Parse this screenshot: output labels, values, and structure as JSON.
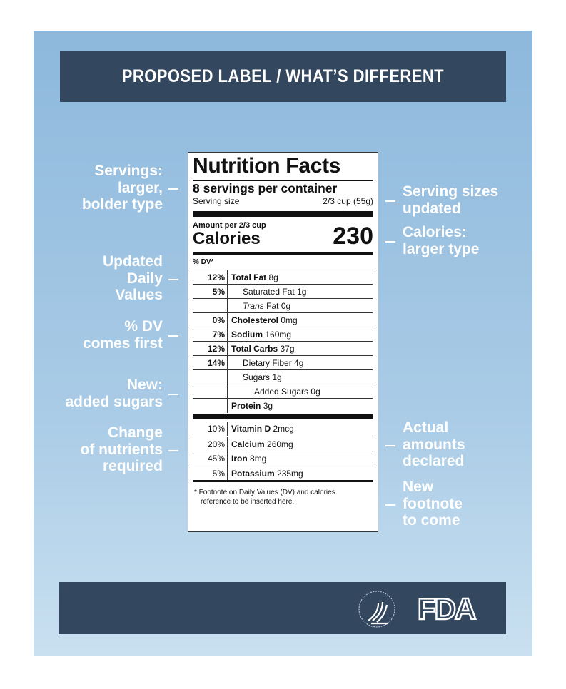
{
  "header": {
    "title": "PROPOSED LABEL / WHAT’S DIFFERENT"
  },
  "left_annotations": [
    {
      "lines": [
        "Servings:",
        "larger,",
        "bolder type"
      ]
    },
    {
      "lines": [
        "Updated",
        "Daily",
        "Values"
      ]
    },
    {
      "lines": [
        "% DV",
        "comes first"
      ]
    },
    {
      "lines": [
        "New:",
        "added sugars"
      ]
    },
    {
      "lines": [
        "Change",
        "of nutrients",
        "required"
      ]
    }
  ],
  "right_annotations": [
    {
      "lines": [
        "Serving sizes",
        "updated"
      ]
    },
    {
      "lines": [
        "Calories:",
        "larger type"
      ]
    },
    {
      "lines": [
        "Actual",
        "amounts",
        "declared"
      ]
    },
    {
      "lines": [
        "New",
        "footnote",
        "to come"
      ]
    }
  ],
  "label": {
    "title": "Nutrition Facts",
    "servings": "8 servings per container",
    "serving_size_label": "Serving size",
    "serving_size_value": "2/3 cup (55g)",
    "amount_per": "Amount per 2/3 cup",
    "calories_label": "Calories",
    "calories_value": "230",
    "dv_header": "% DV*",
    "nutrients": [
      {
        "dv": "12%",
        "name": "Total Fat",
        "amount": "8g",
        "indent": 0,
        "bold": true
      },
      {
        "dv": "5%",
        "name": "Saturated Fat",
        "amount": "1g",
        "indent": 1,
        "bold": false
      },
      {
        "dv": "",
        "name": "Trans",
        "name_suffix": " Fat",
        "amount": "0g",
        "indent": 1,
        "bold": false,
        "italic": true
      },
      {
        "dv": "0%",
        "name": "Cholesterol",
        "amount": "0mg",
        "indent": 0,
        "bold": true
      },
      {
        "dv": "7%",
        "name": "Sodium",
        "amount": "160mg",
        "indent": 0,
        "bold": true
      },
      {
        "dv": "12%",
        "name": "Total Carbs",
        "amount": "37g",
        "indent": 0,
        "bold": true
      },
      {
        "dv": "14%",
        "name": "Dietary Fiber",
        "amount": "4g",
        "indent": 1,
        "bold": false
      },
      {
        "dv": "",
        "name": "Sugars",
        "amount": "1g",
        "indent": 1,
        "bold": false
      },
      {
        "dv": "",
        "name": "Added Sugars",
        "amount": "0g",
        "indent": 2,
        "bold": false
      },
      {
        "dv": "",
        "name": "Protein",
        "amount": "3g",
        "indent": 0,
        "bold": true
      }
    ],
    "vitamins": [
      {
        "dv": "10%",
        "name": "Vitamin D",
        "amount": "2mcg"
      },
      {
        "dv": "20%",
        "name": "Calcium",
        "amount": "260mg"
      },
      {
        "dv": "45%",
        "name": "Iron",
        "amount": "8mg"
      },
      {
        "dv": "5%",
        "name": "Potassium",
        "amount": "235mg"
      }
    ],
    "footnote": [
      "*  Footnote on Daily Values (DV) and calories",
      "reference to be inserted here."
    ]
  },
  "footer": {
    "logos": [
      "HHS seal",
      "FDA"
    ]
  },
  "colors": {
    "navy": "#33475f",
    "panel_top": "#8db8dc",
    "panel_bottom": "#c9e0f0"
  }
}
